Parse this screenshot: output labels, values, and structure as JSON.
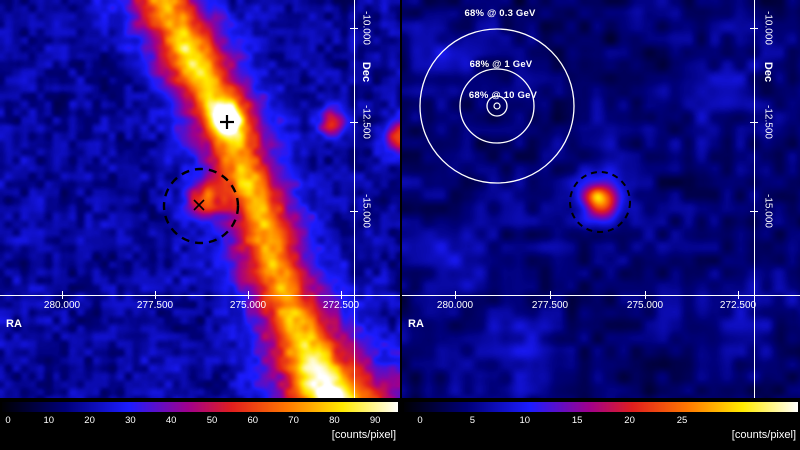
{
  "figure": {
    "background_color": "#000000",
    "axis_color": "#ffffff",
    "colormap_stops": [
      {
        "t": 0.0,
        "rgb": [
          0,
          0,
          4
        ]
      },
      {
        "t": 0.16,
        "rgb": [
          0,
          0,
          120
        ]
      },
      {
        "t": 0.32,
        "rgb": [
          28,
          28,
          255
        ]
      },
      {
        "t": 0.47,
        "rgb": [
          160,
          0,
          140
        ]
      },
      {
        "t": 0.58,
        "rgb": [
          225,
          30,
          30
        ]
      },
      {
        "t": 0.72,
        "rgb": [
          255,
          120,
          0
        ]
      },
      {
        "t": 0.86,
        "rgb": [
          255,
          235,
          0
        ]
      },
      {
        "t": 1.0,
        "rgb": [
          255,
          255,
          255
        ]
      }
    ]
  },
  "panels": [
    {
      "name": "left-counts-map",
      "x_axis_label": "RA",
      "y_axis_label": "Dec",
      "x_tick_labels": [
        "280.000",
        "277.500",
        "275.000",
        "272.500"
      ],
      "y_tick_labels": [
        "-10.000",
        "-12.500",
        "-15.000"
      ],
      "colorbar_tick_labels": [
        "0",
        "10",
        "20",
        "30",
        "40",
        "50",
        "60",
        "70",
        "80",
        "90"
      ],
      "units_label": "[counts/pixel]",
      "markers": {
        "plus_marker": "bright point source",
        "cross_marker": "target position",
        "dashed_circle": "source extraction region"
      }
    },
    {
      "name": "right-counts-map",
      "x_axis_label": "RA",
      "y_axis_label": "Dec",
      "x_tick_labels": [
        "280.000",
        "277.500",
        "275.000",
        "272.500"
      ],
      "y_tick_labels": [
        "-10.000",
        "-12.500",
        "-15.000"
      ],
      "colorbar_tick_labels": [
        "0",
        "5",
        "10",
        "15",
        "20",
        "25"
      ],
      "units_label": "[counts/pixel]",
      "psf_circles": [
        {
          "label": "68% @ 0.3 GeV"
        },
        {
          "label": "68% @ 1 GeV"
        },
        {
          "label": "68% @ 10 GeV"
        }
      ],
      "markers": {
        "dashed_circle": "source extraction region"
      }
    }
  ],
  "chart_data": [
    {
      "type": "heatmap",
      "panel": "left",
      "xlabel": "RA",
      "ylabel": "Dec",
      "x_tick_values": [
        280.0,
        277.5,
        275.0,
        272.5
      ],
      "y_tick_values": [
        -10.0,
        -12.5,
        -15.0
      ],
      "xlim_est": [
        281.7,
        270.9
      ],
      "ylim_est": [
        -9.2,
        -20.2
      ],
      "colorbar": {
        "ticks": [
          0,
          10,
          20,
          30,
          40,
          50,
          60,
          70,
          80,
          90
        ],
        "units": "[counts/pixel]",
        "range_est": [
          0,
          96
        ]
      },
      "colormap": "black-blue-red-orange-yellow-white (ds9 b-style)",
      "grid": false,
      "features": [
        {
          "name": "diffuse-plane-band",
          "description": "bright diagonal diffuse emission band running from upper-left to lower-right",
          "peak_level_est": 75
        },
        {
          "name": "bright-point-source",
          "marker": "+",
          "ra_est": 275.6,
          "dec_est": -12.4,
          "peak_level_est": 90
        },
        {
          "name": "target-source",
          "marker": "x inside dashed circle",
          "ra_est": 276.3,
          "dec_est": -14.8,
          "circle_radius_deg_est": 1.0,
          "peak_level_est": 45
        },
        {
          "name": "secondary-compact-source",
          "ra_est": 272.7,
          "dec_est": -12.6,
          "peak_level_est": 55
        }
      ]
    },
    {
      "type": "heatmap",
      "panel": "right",
      "xlabel": "RA",
      "ylabel": "Dec",
      "x_tick_values": [
        280.0,
        277.5,
        275.0,
        272.5
      ],
      "y_tick_values": [
        -10.0,
        -12.5,
        -15.0
      ],
      "xlim_est": [
        281.5,
        271.2
      ],
      "ylim_est": [
        -9.2,
        -20.2
      ],
      "colorbar": {
        "ticks": [
          0,
          5,
          10,
          15,
          20,
          25
        ],
        "units": "[counts/pixel]",
        "range_est": [
          0,
          28
        ]
      },
      "colormap": "black-blue-red-orange-yellow-white (ds9 b-style)",
      "grid": false,
      "features": [
        {
          "name": "target-source",
          "marker": "dashed circle",
          "ra_est": 276.2,
          "dec_est": -14.7,
          "circle_radius_deg_est": 0.8,
          "peak_level_est": 22
        },
        {
          "name": "psf-containment-circles",
          "center_ra_est": 278.9,
          "center_dec_est": -12.1,
          "circles": [
            {
              "label": "68% @ 0.3 GeV",
              "radius_deg_est": 2.0
            },
            {
              "label": "68% @ 1 GeV",
              "radius_deg_est": 1.0
            },
            {
              "label": "68% @ 10 GeV",
              "radius_deg_est": 0.3
            }
          ]
        }
      ]
    }
  ]
}
